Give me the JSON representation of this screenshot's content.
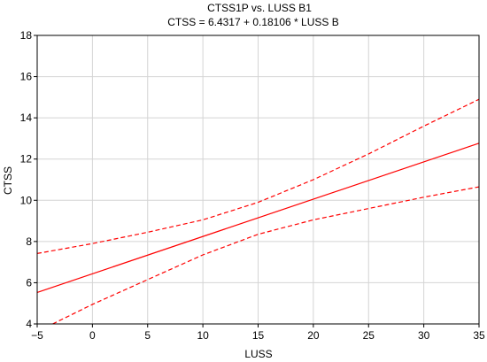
{
  "chart_data": {
    "type": "line",
    "title": "CTSS1P   vs. LUSS B1",
    "subtitle": "CTSS   = 6.4317 + 0.18106 * LUSS B",
    "xlabel": "LUSS",
    "ylabel": "CTSS",
    "xlim": [
      -5,
      35
    ],
    "ylim": [
      4,
      18
    ],
    "xticks": [
      -5,
      0,
      5,
      10,
      15,
      20,
      25,
      30,
      35
    ],
    "yticks": [
      4,
      6,
      8,
      10,
      12,
      14,
      16,
      18
    ],
    "grid": true,
    "legend": "none",
    "series": [
      {
        "role": "fit",
        "style": "solid",
        "color": "#ff0000",
        "x": [
          -5,
          35
        ],
        "y": [
          5.53,
          12.77
        ]
      },
      {
        "role": "upper-confidence",
        "style": "dashed",
        "color": "#ff0000",
        "x": [
          -5,
          0,
          5,
          10,
          15,
          20,
          25,
          30,
          35
        ],
        "y": [
          7.42,
          7.9,
          8.45,
          9.05,
          9.9,
          11.0,
          12.25,
          13.6,
          14.9
        ]
      },
      {
        "role": "lower-confidence",
        "style": "dashed",
        "color": "#ff0000",
        "x": [
          -3.6,
          0,
          5,
          10,
          15,
          20,
          25,
          30,
          35
        ],
        "y": [
          4.0,
          4.95,
          6.15,
          7.35,
          8.35,
          9.05,
          9.6,
          10.15,
          10.65
        ]
      }
    ]
  }
}
